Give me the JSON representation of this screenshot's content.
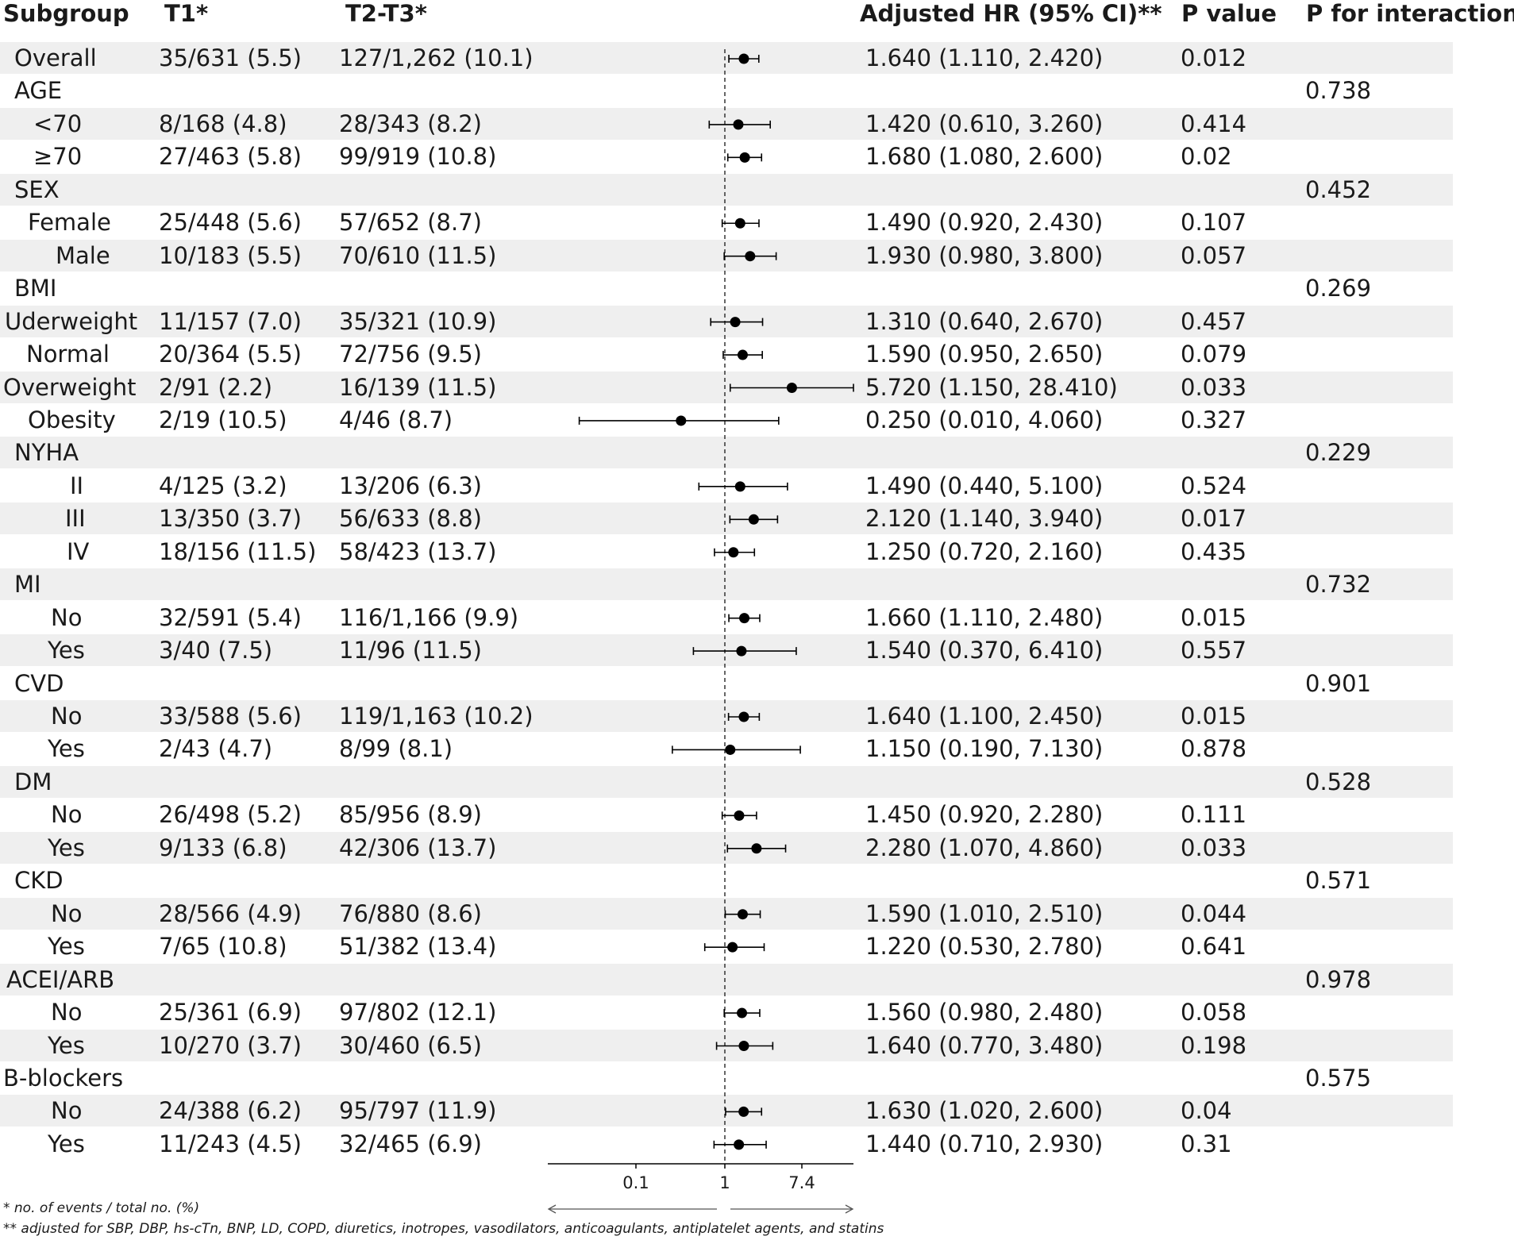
{
  "headers": {
    "subgroup": "Subgroup",
    "t1": "T1*",
    "t23": "T2-T3*",
    "hr": "Adjusted HR (95% CI)**",
    "p": "P value",
    "pint": "P for interaction"
  },
  "rows": [
    {
      "label": "Overall",
      "indent": 0,
      "t1": "35/631 (5.5)",
      "t23": "127/1,262 (10.1)",
      "hr_text": "1.640 (1.110, 2.420)",
      "p": "0.012",
      "pint": ""
    },
    {
      "label": "AGE",
      "indent": 0,
      "t1": "",
      "t23": "",
      "hr_text": "",
      "p": "",
      "pint": "0.738"
    },
    {
      "label": "<70",
      "indent": 1,
      "t1": "8/168 (4.8)",
      "t23": "28/343 (8.2)",
      "hr_text": "1.420 (0.610, 3.260)",
      "p": "0.414",
      "pint": ""
    },
    {
      "label": "≥70",
      "indent": 1,
      "t1": "27/463 (5.8)",
      "t23": "99/919 (10.8)",
      "hr_text": "1.680 (1.080, 2.600)",
      "p": "0.02",
      "pint": ""
    },
    {
      "label": "SEX",
      "indent": 0,
      "t1": "",
      "t23": "",
      "hr_text": "",
      "p": "",
      "pint": "0.452"
    },
    {
      "label": "Female",
      "indent": 1,
      "t1": "25/448 (5.6)",
      "t23": "57/652 (8.7)",
      "hr_text": "1.490 (0.920, 2.430)",
      "p": "0.107",
      "pint": ""
    },
    {
      "label": "Male",
      "indent": 1,
      "t1": "10/183 (5.5)",
      "t23": "70/610 (11.5)",
      "hr_text": "1.930 (0.980, 3.800)",
      "p": "0.057",
      "pint": ""
    },
    {
      "label": "BMI",
      "indent": 0,
      "t1": "",
      "t23": "",
      "hr_text": "",
      "p": "",
      "pint": "0.269"
    },
    {
      "label": "Uderweight",
      "indent": 1,
      "t1": "11/157 (7.0)",
      "t23": "35/321 (10.9)",
      "hr_text": "1.310 (0.640, 2.670)",
      "p": "0.457",
      "pint": ""
    },
    {
      "label": "Normal",
      "indent": 1,
      "t1": "20/364 (5.5)",
      "t23": "72/756 (9.5)",
      "hr_text": "1.590 (0.950, 2.650)",
      "p": "0.079",
      "pint": ""
    },
    {
      "label": "Overweight",
      "indent": 1,
      "t1": "2/91 (2.2)",
      "t23": "16/139 (11.5)",
      "hr_text": "5.720 (1.150, 28.410)",
      "p": "0.033",
      "pint": ""
    },
    {
      "label": "Obesity",
      "indent": 1,
      "t1": "2/19 (10.5)",
      "t23": "4/46 (8.7)",
      "hr_text": "0.250 (0.010, 4.060)",
      "p": "0.327",
      "pint": ""
    },
    {
      "label": "NYHA",
      "indent": 0,
      "t1": "",
      "t23": "",
      "hr_text": "",
      "p": "",
      "pint": "0.229"
    },
    {
      "label": "II",
      "indent": 1,
      "t1": "4/125 (3.2)",
      "t23": "13/206 (6.3)",
      "hr_text": "1.490 (0.440, 5.100)",
      "p": "0.524",
      "pint": ""
    },
    {
      "label": "III",
      "indent": 1,
      "t1": "13/350 (3.7)",
      "t23": "56/633 (8.8)",
      "hr_text": "2.120 (1.140, 3.940)",
      "p": "0.017",
      "pint": ""
    },
    {
      "label": "IV",
      "indent": 1,
      "t1": "18/156 (11.5)",
      "t23": "58/423 (13.7)",
      "hr_text": "1.250 (0.720, 2.160)",
      "p": "0.435",
      "pint": ""
    },
    {
      "label": "MI",
      "indent": 0,
      "t1": "",
      "t23": "",
      "hr_text": "",
      "p": "",
      "pint": "0.732"
    },
    {
      "label": "No",
      "indent": 1,
      "t1": "32/591 (5.4)",
      "t23": "116/1,166 (9.9)",
      "hr_text": "1.660 (1.110, 2.480)",
      "p": "0.015",
      "pint": ""
    },
    {
      "label": "Yes",
      "indent": 1,
      "t1": "3/40 (7.5)",
      "t23": "11/96 (11.5)",
      "hr_text": "1.540 (0.370, 6.410)",
      "p": "0.557",
      "pint": ""
    },
    {
      "label": "CVD",
      "indent": 0,
      "t1": "",
      "t23": "",
      "hr_text": "",
      "p": "",
      "pint": "0.901"
    },
    {
      "label": "No",
      "indent": 1,
      "t1": "33/588 (5.6)",
      "t23": "119/1,163 (10.2)",
      "hr_text": "1.640 (1.100, 2.450)",
      "p": "0.015",
      "pint": ""
    },
    {
      "label": "Yes",
      "indent": 1,
      "t1": "2/43 (4.7)",
      "t23": "8/99 (8.1)",
      "hr_text": "1.150 (0.190, 7.130)",
      "p": "0.878",
      "pint": ""
    },
    {
      "label": "DM",
      "indent": 0,
      "t1": "",
      "t23": "",
      "hr_text": "",
      "p": "",
      "pint": "0.528"
    },
    {
      "label": "No",
      "indent": 1,
      "t1": "26/498 (5.2)",
      "t23": "85/956 (8.9)",
      "hr_text": "1.450 (0.920, 2.280)",
      "p": "0.111",
      "pint": ""
    },
    {
      "label": "Yes",
      "indent": 1,
      "t1": "9/133 (6.8)",
      "t23": "42/306 (13.7)",
      "hr_text": "2.280 (1.070, 4.860)",
      "p": "0.033",
      "pint": ""
    },
    {
      "label": "CKD",
      "indent": 0,
      "t1": "",
      "t23": "",
      "hr_text": "",
      "p": "",
      "pint": "0.571"
    },
    {
      "label": "No",
      "indent": 1,
      "t1": "28/566 (4.9)",
      "t23": "76/880 (8.6)",
      "hr_text": "1.590 (1.010, 2.510)",
      "p": "0.044",
      "pint": ""
    },
    {
      "label": "Yes",
      "indent": 1,
      "t1": "7/65 (10.8)",
      "t23": "51/382 (13.4)",
      "hr_text": "1.220 (0.530, 2.780)",
      "p": "0.641",
      "pint": ""
    },
    {
      "label": "ACEI/ARB",
      "indent": 0,
      "t1": "",
      "t23": "",
      "hr_text": "",
      "p": "",
      "pint": "0.978"
    },
    {
      "label": "No",
      "indent": 1,
      "t1": "25/361 (6.9)",
      "t23": "97/802 (12.1)",
      "hr_text": "1.560 (0.980, 2.480)",
      "p": "0.058",
      "pint": ""
    },
    {
      "label": "Yes",
      "indent": 1,
      "t1": "10/270 (3.7)",
      "t23": "30/460 (6.5)",
      "hr_text": "1.640 (0.770, 3.480)",
      "p": "0.198",
      "pint": ""
    },
    {
      "label": "B-blockers",
      "indent": 0,
      "t1": "",
      "t23": "",
      "hr_text": "",
      "p": "",
      "pint": "0.575"
    },
    {
      "label": "No",
      "indent": 1,
      "t1": "24/388 (6.2)",
      "t23": "95/797 (11.9)",
      "hr_text": "1.630 (1.020, 2.600)",
      "p": "0.04",
      "pint": ""
    },
    {
      "label": "Yes",
      "indent": 1,
      "t1": "11/243 (4.5)",
      "t23": "32/465 (6.9)",
      "hr_text": "1.440 (0.710, 2.930)",
      "p": "0.31",
      "pint": ""
    }
  ],
  "chart_data": {
    "type": "scatter",
    "title": "",
    "xlabel": "",
    "ylabel": "",
    "x_scale": "log",
    "x_ticks": [
      "0.1",
      "1",
      "7.4"
    ],
    "x_tick_values": [
      0.1,
      1,
      7.4
    ],
    "xlim": [
      0.0037,
      28.41
    ],
    "reference_line": 1,
    "reference_line_style": "dashed",
    "point_color": "#000000",
    "band_color": "#efefef",
    "series": [
      {
        "categories": [
          "Overall",
          "<70",
          "≥70",
          "Female",
          "Male",
          "Uderweight",
          "Normal",
          "Overweight",
          "Obesity",
          "II",
          "III",
          "IV",
          "No",
          "Yes",
          "No",
          "Yes",
          "No",
          "Yes",
          "No",
          "Yes",
          "No",
          "Yes",
          "No",
          "Yes"
        ],
        "hr": [
          1.64,
          1.42,
          1.68,
          1.49,
          1.93,
          1.31,
          1.59,
          5.72,
          0.25,
          1.49,
          2.12,
          1.25,
          1.66,
          1.54,
          1.64,
          1.15,
          1.45,
          2.28,
          1.59,
          1.22,
          1.56,
          1.64,
          1.63,
          1.44
        ],
        "lower": [
          1.11,
          0.61,
          1.08,
          0.92,
          0.98,
          0.64,
          0.95,
          1.15,
          0.01,
          0.44,
          1.14,
          0.72,
          1.11,
          0.37,
          1.1,
          0.19,
          0.92,
          1.07,
          1.01,
          0.53,
          0.98,
          0.77,
          1.02,
          0.71
        ],
        "upper": [
          2.42,
          3.26,
          2.6,
          2.43,
          3.8,
          2.67,
          2.65,
          28.41,
          4.06,
          5.1,
          3.94,
          2.16,
          2.48,
          6.41,
          2.45,
          7.13,
          2.28,
          4.86,
          2.51,
          2.78,
          2.48,
          3.48,
          2.6,
          2.93
        ]
      }
    ]
  },
  "footnotes": {
    "f1": "* no. of events / total no. (%)",
    "f2": "** adjusted for SBP, DBP, hs-cTn, BNP, LD, COPD, diuretics, inotropes, vasodilators, anticoagulants, antiplatelet agents, and statins"
  }
}
